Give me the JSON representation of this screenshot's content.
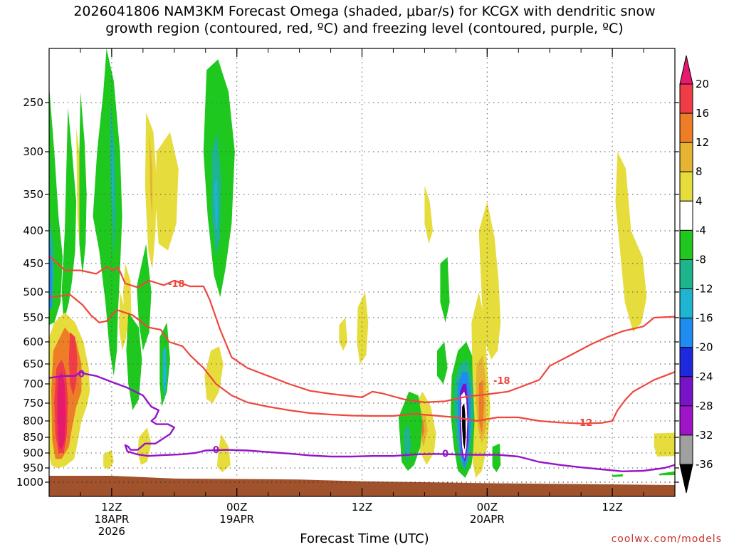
{
  "title": {
    "line1": "2026041806 NAM3KM Forecast Omega (shaded, μbar/s) for KCGX with dendritic snow",
    "line2": "growth region (contoured, red, ºC) and freezing level (contoured, purple, ºC)"
  },
  "xaxis_title": "Forecast Time (UTC)",
  "credit": "coolwx.com/models",
  "chart_data": {
    "type": "heatmap",
    "title": "2026041806 NAM3KM Forecast Omega (shaded, μbar/s) for KCGX with dendritic snow growth region (contoured, red, ºC) and freezing level (contoured, purple, ºC)",
    "xlabel": "Forecast Time (UTC)",
    "ylabel": "",
    "y_axis": {
      "scale": "pressure",
      "ticks": [
        250,
        300,
        350,
        400,
        450,
        500,
        550,
        600,
        650,
        700,
        750,
        800,
        850,
        900,
        950,
        1000
      ],
      "range": [
        200,
        1025
      ]
    },
    "x_axis": {
      "range_hours": [
        0,
        60
      ],
      "ticks": [
        {
          "hour": 6,
          "labels": [
            "12Z",
            "18APR",
            "2026"
          ]
        },
        {
          "hour": 18,
          "labels": [
            "00Z",
            "19APR"
          ]
        },
        {
          "hour": 30,
          "labels": [
            "12Z"
          ]
        },
        {
          "hour": 42,
          "labels": [
            "00Z",
            "20APR"
          ]
        },
        {
          "hour": 54,
          "labels": [
            "12Z"
          ]
        }
      ],
      "minor_every_hours": 3
    },
    "colorbar": {
      "labels": [
        "20",
        "16",
        "12",
        "8",
        "4",
        "-4",
        "-8",
        "-12",
        "-16",
        "-20",
        "-24",
        "-28",
        "-32",
        "-36"
      ],
      "colors": [
        "#e6196e",
        "#f03c46",
        "#ee7d28",
        "#e6b432",
        "#e6dc3c",
        "#ffffff",
        "#1ec81e",
        "#1eb48c",
        "#1eb4d2",
        "#1e8cf0",
        "#1e28dc",
        "#7814c8",
        "#a014c8",
        "#a0a0a0",
        "#000000"
      ]
    },
    "contours": [
      {
        "name": "freezing level",
        "value": "0",
        "color": "#9614c8",
        "label": "0"
      },
      {
        "name": "dendritic growth region",
        "value": "-12",
        "color": "#f0463c",
        "label": "-12"
      },
      {
        "name": "dendritic growth region",
        "value": "-18",
        "color": "#f0463c",
        "label": "-18"
      }
    ],
    "terrain_color": "#a0522d"
  }
}
